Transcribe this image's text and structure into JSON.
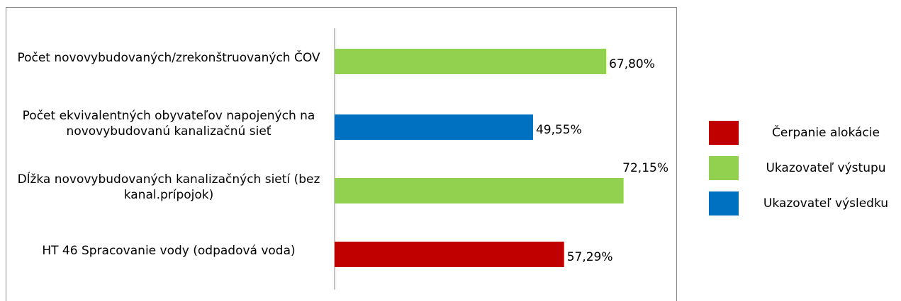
{
  "chart_data": {
    "type": "hbar",
    "categories": [
      "Počet novovybudovaných/zrekonštruovaných ČOV",
      "Počet ekvivalentných obyvateľov napojených na novovybudovanú kanalizačnú sieť",
      "Dĺžka novovybudovaných kanalizačných sietí (bez kanal.prípojok)",
      "HT 46 Spracovanie vody (odpadová voda)"
    ],
    "values": [
      67.8,
      49.55,
      72.15,
      57.29
    ],
    "value_labels": [
      "67,80%",
      "49,55%",
      "72,15%",
      "57,29%"
    ],
    "colors": [
      "#92d050",
      "#0070c0",
      "#92d050",
      "#c00000"
    ],
    "xlim": [
      0,
      100
    ],
    "legend": [
      {
        "name": "Čerpanie alokácie",
        "color": "#c00000"
      },
      {
        "name": "Ukazovateľ výstupu",
        "color": "#92d050"
      },
      {
        "name": "Ukazovateľ výsledku",
        "color": "#0070c0"
      }
    ]
  }
}
